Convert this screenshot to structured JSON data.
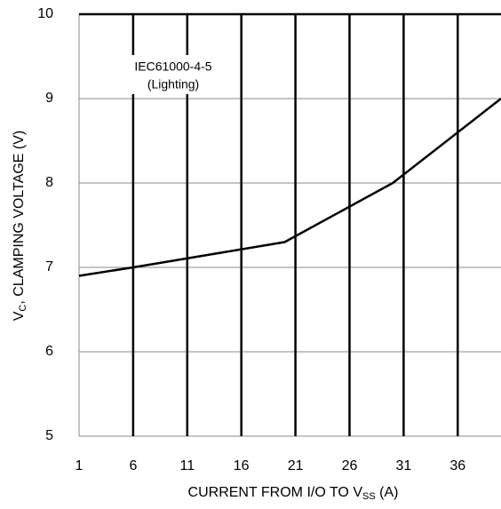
{
  "chart_data": {
    "type": "line",
    "x_label": [
      "CURRENT FROM I/O TO V",
      "SS",
      " (A)"
    ],
    "y_label": [
      "V",
      "C",
      ", CLAMPING VOLTAGE (V)"
    ],
    "annotation": [
      "IEC61000-4-5",
      "(Lighting)"
    ],
    "series": [
      {
        "name": "Clamping voltage",
        "color": "#000000",
        "x": [
          1,
          6,
          20,
          30,
          40
        ],
        "values": [
          6.9,
          7.0,
          7.3,
          8.0,
          9.0
        ]
      }
    ],
    "xlim": [
      1,
      40
    ],
    "xticks": [
      1,
      6,
      11,
      16,
      21,
      26,
      31,
      36
    ],
    "ylim": [
      5,
      10
    ],
    "yticks": [
      5,
      6,
      7,
      8,
      9,
      10
    ],
    "grid": true
  }
}
